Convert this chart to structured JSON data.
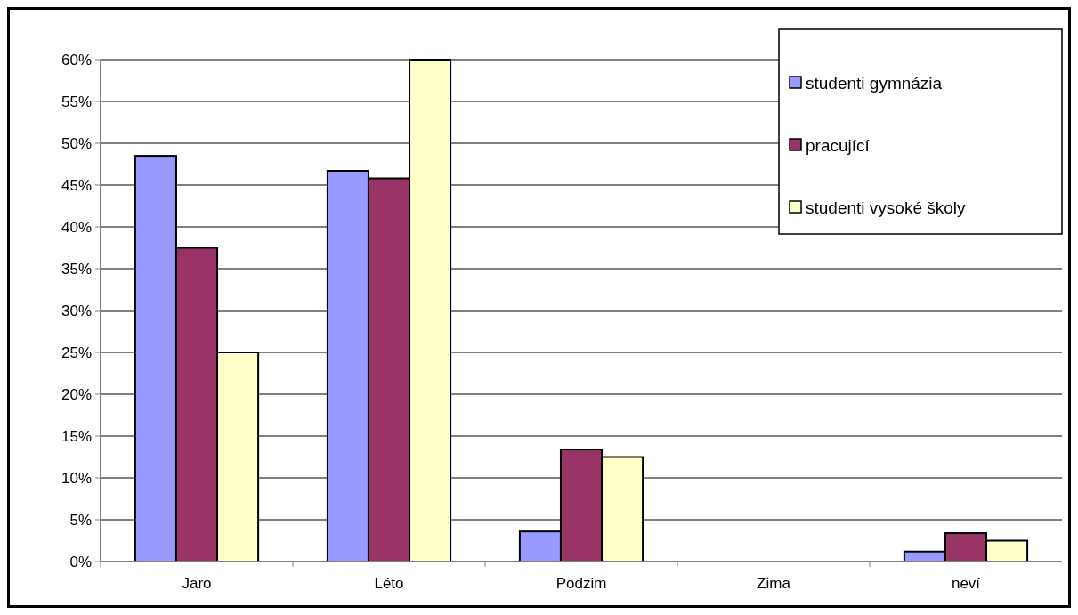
{
  "chart_data": {
    "type": "bar",
    "categories": [
      "Jaro",
      "Léto",
      "Podzim",
      "Zima",
      "neví"
    ],
    "series": [
      {
        "name": "studenti gymnázia",
        "color": "#9999ff",
        "values": [
          48.5,
          46.7,
          3.6,
          0,
          1.2
        ]
      },
      {
        "name": "pracující",
        "color": "#993366",
        "values": [
          37.5,
          45.8,
          13.4,
          0,
          3.4
        ]
      },
      {
        "name": "studenti vysoké školy",
        "color": "#ffffcc",
        "values": [
          25.0,
          60.0,
          12.5,
          0,
          2.5
        ]
      }
    ],
    "ylim": [
      0,
      60
    ],
    "yticks": [
      {
        "value": 0,
        "label": "0%"
      },
      {
        "value": 5,
        "label": "5%"
      },
      {
        "value": 10,
        "label": "10%"
      },
      {
        "value": 15,
        "label": "15%"
      },
      {
        "value": 20,
        "label": "20%"
      },
      {
        "value": 25,
        "label": "25%"
      },
      {
        "value": 30,
        "label": "30%"
      },
      {
        "value": 35,
        "label": "35%"
      },
      {
        "value": 40,
        "label": "40%"
      },
      {
        "value": 45,
        "label": "45%"
      },
      {
        "value": 50,
        "label": "50%"
      },
      {
        "value": 55,
        "label": "55%"
      },
      {
        "value": 60,
        "label": "60%"
      }
    ],
    "grid": "y",
    "legend": "top right"
  }
}
